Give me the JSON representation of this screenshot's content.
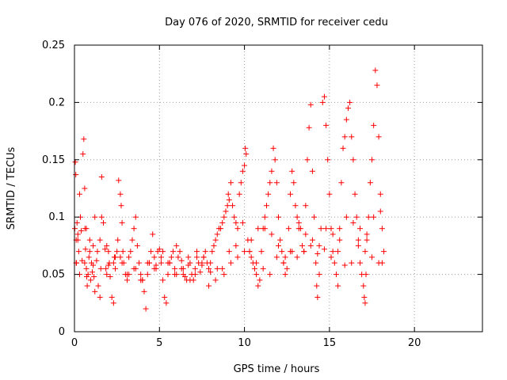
{
  "chart_data": {
    "type": "scatter",
    "title": "Day 076 of 2020, SRMTID for receiver cedu",
    "xlabel": "GPS time / hours",
    "ylabel": "SRMTID / TECUs",
    "xlim": [
      0,
      24
    ],
    "ylim": [
      0,
      0.25
    ],
    "xticks": [
      0,
      5,
      10,
      15,
      20
    ],
    "yticks": [
      0,
      0.05,
      0.1,
      0.15,
      0.2,
      0.25
    ],
    "xtick_labels": [
      "0",
      "5",
      "10",
      "15",
      "20"
    ],
    "ytick_labels": [
      "0",
      "0.05",
      "0.1",
      "0.15",
      "0.2",
      "0.25"
    ],
    "grid": true,
    "marker": "+",
    "series": [
      {
        "name": "SRMTID",
        "color": "#ff0000",
        "x": [
          0.02,
          0.05,
          0.08,
          0.1,
          0.12,
          0.15,
          0.2,
          0.25,
          0.3,
          0.35,
          0.4,
          0.45,
          0.5,
          0.55,
          0.6,
          0.62,
          0.65,
          0.7,
          0.72,
          0.75,
          0.8,
          0.85,
          0.9,
          0.95,
          1.0,
          1.05,
          1.1,
          1.15,
          1.2,
          1.3,
          1.35,
          1.4,
          1.5,
          1.55,
          1.6,
          1.7,
          1.8,
          1.85,
          1.9,
          2.0,
          2.05,
          2.1,
          2.2,
          2.3,
          2.35,
          2.4,
          2.5,
          2.55,
          2.6,
          2.7,
          2.75,
          2.8,
          2.85,
          2.9,
          3.0,
          3.1,
          3.2,
          3.3,
          3.4,
          3.5,
          3.6,
          3.7,
          3.8,
          3.9,
          4.0,
          4.1,
          4.2,
          4.3,
          4.4,
          4.5,
          4.6,
          4.7,
          4.8,
          4.9,
          5.0,
          5.1,
          5.2,
          5.3,
          5.4,
          5.5,
          5.6,
          5.7,
          5.8,
          5.9,
          6.0,
          6.1,
          6.2,
          6.3,
          6.4,
          6.5,
          6.6,
          6.7,
          6.8,
          6.9,
          7.0,
          7.1,
          7.2,
          7.3,
          7.4,
          7.5,
          7.6,
          7.7,
          7.8,
          7.9,
          8.0,
          8.1,
          8.2,
          8.3,
          8.4,
          8.5,
          8.6,
          8.7,
          8.8,
          8.9,
          9.0,
          9.05,
          9.1,
          9.2,
          9.3,
          9.4,
          9.5,
          9.6,
          9.7,
          9.8,
          9.9,
          10.0,
          10.05,
          10.1,
          10.2,
          10.3,
          10.4,
          10.5,
          10.6,
          10.7,
          10.8,
          10.9,
          11.0,
          11.1,
          11.2,
          11.3,
          11.4,
          11.5,
          11.6,
          11.7,
          11.8,
          11.9,
          12.0,
          12.1,
          12.2,
          12.3,
          12.4,
          12.5,
          12.6,
          12.7,
          12.8,
          12.9,
          13.0,
          13.1,
          13.2,
          13.3,
          13.4,
          13.5,
          13.6,
          13.7,
          13.8,
          13.9,
          14.0,
          14.1,
          14.2,
          14.25,
          14.3,
          14.4,
          14.5,
          14.6,
          14.7,
          14.8,
          14.9,
          15.0,
          15.1,
          15.2,
          15.3,
          15.4,
          15.5,
          15.6,
          15.7,
          15.8,
          15.9,
          16.0,
          16.1,
          16.2,
          16.3,
          16.4,
          16.5,
          16.6,
          16.7,
          16.8,
          16.9,
          17.0,
          17.05,
          17.1,
          17.15,
          17.2,
          17.3,
          17.4,
          17.5,
          17.6,
          17.7,
          17.8,
          17.9,
          18.0,
          18.1,
          18.2,
          0.1,
          0.3,
          0.6,
          0.9,
          1.2,
          1.6,
          2.0,
          2.4,
          2.8,
          3.2,
          3.6,
          4.0,
          4.4,
          4.8,
          5.2,
          5.6,
          6.0,
          6.4,
          6.8,
          7.2,
          7.6,
          8.0,
          8.4,
          8.8,
          9.2,
          9.6,
          10.0,
          10.4,
          10.8,
          11.2,
          11.6,
          12.0,
          12.4,
          12.8,
          13.2,
          13.6,
          14.0,
          14.4,
          14.8,
          15.2,
          15.6,
          16.0,
          16.4,
          16.8,
          17.2,
          17.6,
          18.0,
          0.2,
          0.7,
          1.1,
          1.5,
          1.9,
          2.3,
          2.7,
          3.1,
          3.5,
          3.9,
          4.3,
          4.7,
          5.1,
          5.5,
          5.9,
          6.3,
          6.7,
          7.1,
          7.5,
          7.9,
          8.3,
          8.7,
          9.1,
          9.5,
          9.9,
          10.3,
          10.7,
          11.1,
          11.5,
          11.9,
          12.3,
          12.7,
          13.1,
          13.5,
          13.9,
          14.3,
          14.7,
          15.1,
          15.5,
          15.9,
          16.3,
          16.7,
          17.1,
          17.5,
          17.9,
          18.1
        ],
        "y": [
          0.09,
          0.148,
          0.137,
          0.08,
          0.06,
          0.095,
          0.085,
          0.07,
          0.12,
          0.1,
          0.088,
          0.062,
          0.155,
          0.168,
          0.125,
          0.09,
          0.072,
          0.055,
          0.048,
          0.04,
          0.05,
          0.065,
          0.07,
          0.045,
          0.06,
          0.052,
          0.058,
          0.048,
          0.035,
          0.062,
          0.07,
          0.04,
          0.03,
          0.055,
          0.1,
          0.095,
          0.072,
          0.055,
          0.05,
          0.058,
          0.06,
          0.048,
          0.03,
          0.025,
          0.065,
          0.055,
          0.07,
          0.08,
          0.132,
          0.12,
          0.11,
          0.095,
          0.07,
          0.06,
          0.05,
          0.045,
          0.065,
          0.07,
          0.08,
          0.09,
          0.1,
          0.075,
          0.06,
          0.05,
          0.045,
          0.035,
          0.02,
          0.05,
          0.06,
          0.07,
          0.085,
          0.065,
          0.058,
          0.07,
          0.072,
          0.06,
          0.045,
          0.03,
          0.025,
          0.05,
          0.06,
          0.065,
          0.07,
          0.055,
          0.05,
          0.065,
          0.07,
          0.062,
          0.055,
          0.048,
          0.045,
          0.058,
          0.06,
          0.05,
          0.045,
          0.055,
          0.065,
          0.06,
          0.052,
          0.058,
          0.065,
          0.07,
          0.06,
          0.055,
          0.052,
          0.07,
          0.075,
          0.08,
          0.085,
          0.09,
          0.09,
          0.095,
          0.1,
          0.105,
          0.11,
          0.12,
          0.115,
          0.13,
          0.11,
          0.1,
          0.095,
          0.09,
          0.12,
          0.13,
          0.14,
          0.145,
          0.16,
          0.155,
          0.08,
          0.07,
          0.065,
          0.06,
          0.055,
          0.05,
          0.04,
          0.045,
          0.07,
          0.09,
          0.1,
          0.11,
          0.12,
          0.13,
          0.14,
          0.16,
          0.15,
          0.13,
          0.1,
          0.08,
          0.07,
          0.06,
          0.05,
          0.055,
          0.09,
          0.12,
          0.14,
          0.13,
          0.11,
          0.1,
          0.095,
          0.09,
          0.075,
          0.07,
          0.11,
          0.15,
          0.178,
          0.198,
          0.14,
          0.1,
          0.06,
          0.04,
          0.03,
          0.05,
          0.09,
          0.2,
          0.205,
          0.18,
          0.15,
          0.12,
          0.09,
          0.07,
          0.06,
          0.05,
          0.04,
          0.09,
          0.13,
          0.16,
          0.17,
          0.185,
          0.195,
          0.2,
          0.17,
          0.15,
          0.12,
          0.1,
          0.08,
          0.06,
          0.05,
          0.04,
          0.03,
          0.025,
          0.05,
          0.08,
          0.1,
          0.13,
          0.15,
          0.18,
          0.228,
          0.215,
          0.17,
          0.12,
          0.09,
          0.07,
          0.06,
          0.05,
          0.06,
          0.08,
          0.1,
          0.135,
          0.07,
          0.065,
          0.06,
          0.05,
          0.055,
          0.045,
          0.06,
          0.055,
          0.07,
          0.06,
          0.075,
          0.05,
          0.045,
          0.07,
          0.065,
          0.06,
          0.055,
          0.05,
          0.06,
          0.065,
          0.07,
          0.08,
          0.09,
          0.09,
          0.085,
          0.075,
          0.065,
          0.07,
          0.09,
          0.085,
          0.08,
          0.075,
          0.09,
          0.085,
          0.08,
          0.1,
          0.095,
          0.09,
          0.085,
          0.1,
          0.105,
          0.08,
          0.09,
          0.075,
          0.08,
          0.075,
          0.06,
          0.065,
          0.05,
          0.055,
          0.045,
          0.06,
          0.055,
          0.065,
          0.06,
          0.05,
          0.055,
          0.065,
          0.05,
          0.06,
          0.04,
          0.045,
          0.055,
          0.07,
          0.075,
          0.095,
          0.07,
          0.06,
          0.055,
          0.05,
          0.065,
          0.06,
          0.07,
          0.065,
          0.07,
          0.075,
          0.068,
          0.072,
          0.065,
          0.07,
          0.058,
          0.06,
          0.075,
          0.07,
          0.065,
          0.06,
          0.06
        ]
      }
    ]
  }
}
